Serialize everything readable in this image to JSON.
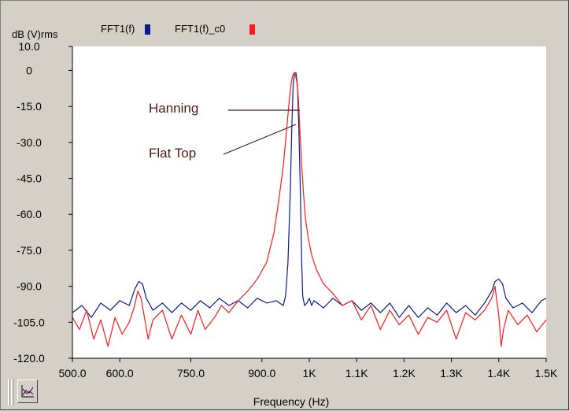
{
  "colors": {
    "series1": "#0a1a8c",
    "series2": "#ff1a1a",
    "annotation": "#4a1a12",
    "plot_bg": "#ffffff",
    "panel_bg": "#d4d0c8"
  },
  "toolbar": {
    "icon": "chart-settings-icon"
  },
  "chart_data": {
    "type": "line",
    "title": "",
    "ylabel": "dB (V)rms",
    "xlabel": "Frequency (Hz)",
    "xlim": [
      500,
      1500
    ],
    "ylim": [
      -120,
      10
    ],
    "grid": false,
    "legend_position": "top",
    "x_ticks": [
      500,
      600,
      750,
      900,
      1000,
      1100,
      1200,
      1300,
      1400,
      1500
    ],
    "x_tick_labels": [
      "500.0",
      "600.0",
      "750.0",
      "900.0",
      "1K",
      "1.1K",
      "1.2K",
      "1.3K",
      "1.4K",
      "1.5K"
    ],
    "y_ticks": [
      10,
      0,
      -15,
      -30,
      -45,
      -60,
      -75,
      -90,
      -105,
      -120
    ],
    "y_tick_labels": [
      "10.0",
      "0",
      "-15.0",
      "-30.0",
      "-45.0",
      "-60.0",
      "-75.0",
      "-90.0",
      "-105.0",
      "-120.0"
    ],
    "series": [
      {
        "name": "FFT1(f)",
        "color": "#0a1a8c",
        "x": [
          500,
          520,
          540,
          560,
          580,
          600,
          620,
          632,
          640,
          648,
          656,
          670,
          690,
          710,
          730,
          750,
          770,
          790,
          810,
          830,
          850,
          870,
          890,
          910,
          930,
          945,
          950,
          955,
          960,
          963,
          966,
          969,
          972,
          975,
          978,
          981,
          984,
          986,
          990,
          995,
          1000,
          1005,
          1010,
          1030,
          1050,
          1070,
          1090,
          1110,
          1130,
          1150,
          1170,
          1190,
          1210,
          1230,
          1250,
          1270,
          1290,
          1310,
          1330,
          1350,
          1370,
          1385,
          1392,
          1400,
          1408,
          1415,
          1430,
          1450,
          1470,
          1490,
          1500
        ],
        "y": [
          -101,
          -98,
          -103,
          -97,
          -100,
          -96,
          -98,
          -91,
          -88,
          -89,
          -95,
          -100,
          -97,
          -101,
          -97,
          -100,
          -96,
          -99,
          -95,
          -98,
          -96,
          -99,
          -95,
          -97,
          -96,
          -98,
          -94,
          -80,
          -50,
          -25,
          -6,
          -1,
          -1,
          -6,
          -25,
          -50,
          -80,
          -94,
          -98,
          -97,
          -95,
          -98,
          -96,
          -99,
          -95,
          -98,
          -96,
          -100,
          -97,
          -101,
          -97,
          -103,
          -98,
          -103,
          -99,
          -102,
          -97,
          -101,
          -98,
          -102,
          -97,
          -92,
          -88,
          -87,
          -89,
          -95,
          -99,
          -97,
          -101,
          -96,
          -95
        ]
      },
      {
        "name": "FFT1(f)_c0",
        "color": "#ff1a1a",
        "x": [
          500,
          515,
          530,
          545,
          560,
          575,
          590,
          605,
          620,
          630,
          638,
          645,
          652,
          660,
          670,
          690,
          710,
          730,
          750,
          765,
          780,
          800,
          815,
          830,
          850,
          870,
          890,
          910,
          925,
          935,
          945,
          952,
          958,
          962,
          965,
          968,
          971,
          974,
          977,
          980,
          984,
          988,
          992,
          998,
          1005,
          1015,
          1030,
          1050,
          1070,
          1090,
          1110,
          1130,
          1150,
          1170,
          1190,
          1210,
          1230,
          1250,
          1270,
          1290,
          1310,
          1330,
          1350,
          1370,
          1385,
          1392,
          1395,
          1400,
          1405,
          1410,
          1420,
          1440,
          1460,
          1480,
          1500
        ],
        "y": [
          -103,
          -108,
          -100,
          -112,
          -104,
          -115,
          -103,
          -110,
          -105,
          -99,
          -92,
          -95,
          -103,
          -112,
          -104,
          -100,
          -112,
          -102,
          -110,
          -100,
          -108,
          -103,
          -98,
          -101,
          -96,
          -92,
          -87,
          -80,
          -68,
          -55,
          -40,
          -25,
          -12,
          -5,
          -2,
          -1,
          -2,
          -5,
          -12,
          -25,
          -40,
          -52,
          -62,
          -70,
          -77,
          -83,
          -89,
          -93,
          -98,
          -96,
          -104,
          -98,
          -108,
          -100,
          -106,
          -102,
          -110,
          -103,
          -105,
          -100,
          -112,
          -101,
          -104,
          -100,
          -95,
          -90,
          -95,
          -102,
          -115,
          -108,
          -100,
          -106,
          -102,
          -109,
          -104
        ]
      }
    ],
    "annotations": [
      {
        "text": "Hanning",
        "series": "FFT1(f)",
        "x": 968,
        "y": -10
      },
      {
        "text": "Flat Top",
        "series": "FFT1(f)_c0",
        "x": 960,
        "y": -18
      }
    ]
  }
}
